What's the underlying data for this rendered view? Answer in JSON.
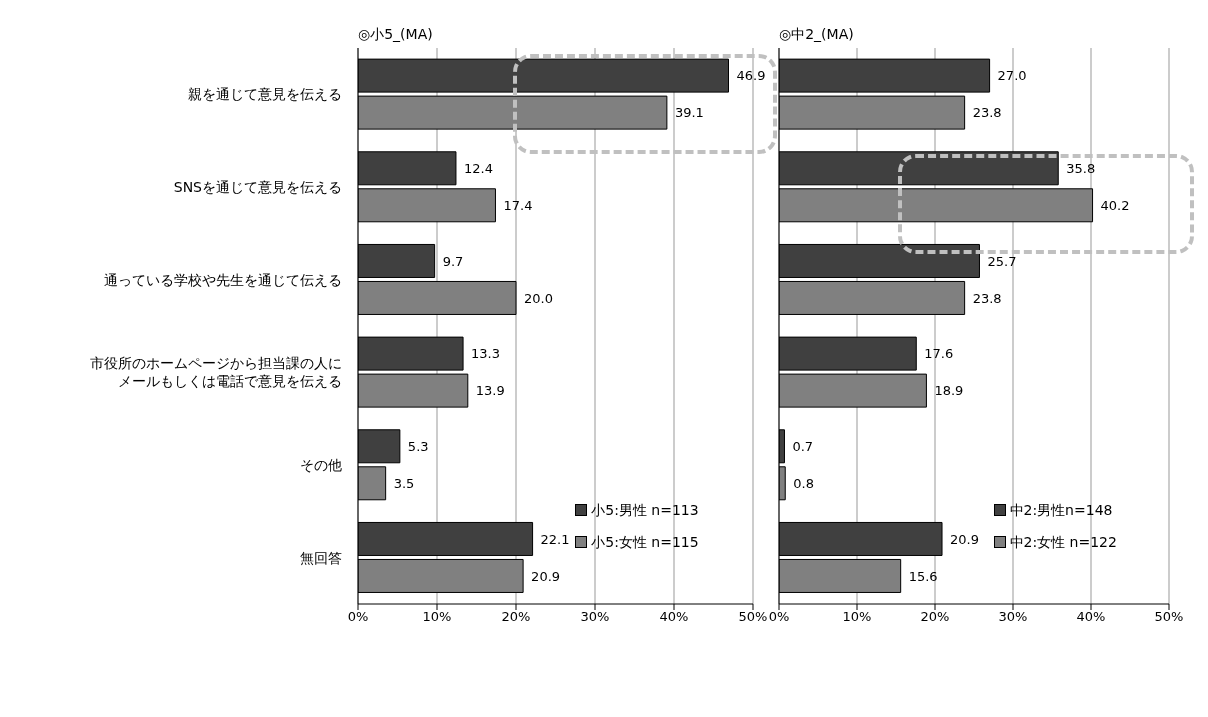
{
  "chart_data": [
    {
      "type": "bar",
      "orientation": "horizontal",
      "title": "◎小5_(MA)",
      "categories": [
        "親を通じて意見を伝える",
        "SNSを通じて意見を伝える",
        "通っている学校や先生を通じて伝える",
        "市役所のホームページから担当課の人にメールもしくは電話で意見を伝える",
        "その他",
        "無回答"
      ],
      "series": [
        {
          "name": "小5:男性 n=113",
          "color": "#404040",
          "values": [
            46.9,
            12.4,
            9.7,
            13.3,
            5.3,
            22.1
          ],
          "value_labels": [
            "46.9",
            "12.4",
            "9.7",
            "13.3",
            "5.3",
            "22.1"
          ]
        },
        {
          "name": "小5:女性 n=115",
          "color": "#808080",
          "values": [
            39.1,
            17.4,
            20.0,
            13.9,
            3.5,
            20.9
          ],
          "value_labels": [
            "39.1",
            "17.4",
            "20.0",
            "13.9",
            "3.5",
            "20.9"
          ]
        }
      ],
      "xlim": [
        0,
        50
      ],
      "xticks": [
        {
          "value": 0,
          "label": "0%"
        },
        {
          "value": 10,
          "label": "10%"
        },
        {
          "value": 20,
          "label": "20%"
        },
        {
          "value": 30,
          "label": "30%"
        },
        {
          "value": 40,
          "label": "40%"
        },
        {
          "value": 50,
          "label": "50%"
        }
      ],
      "grid": "x",
      "legend": "right"
    },
    {
      "type": "bar",
      "orientation": "horizontal",
      "title": "◎中2_(MA)",
      "categories": [
        null,
        null,
        null,
        null,
        null,
        null
      ],
      "series": [
        {
          "name": "中2:男性n=148",
          "color": "#404040",
          "values": [
            27.0,
            35.8,
            25.7,
            17.6,
            0.7,
            20.9
          ],
          "value_labels": [
            "27.0",
            "35.8",
            "25.7",
            "17.6",
            "0.7",
            "20.9"
          ]
        },
        {
          "name": "中2:女性 n=122",
          "color": "#808080",
          "values": [
            23.8,
            40.2,
            23.8,
            18.9,
            0.8,
            15.6
          ],
          "value_labels": [
            "23.8",
            "40.2",
            "23.8",
            "18.9",
            "0.8",
            "15.6"
          ]
        }
      ],
      "xlim": [
        0,
        50
      ],
      "xticks": [
        {
          "value": 0,
          "label": "0%"
        },
        {
          "value": 10,
          "label": "10%"
        },
        {
          "value": 20,
          "label": "20%"
        },
        {
          "value": 30,
          "label": "30%"
        },
        {
          "value": 40,
          "label": "40%"
        },
        {
          "value": 50,
          "label": "50%"
        }
      ],
      "grid": "x",
      "legend": "right",
      "tick_labels": "x"
    }
  ]
}
